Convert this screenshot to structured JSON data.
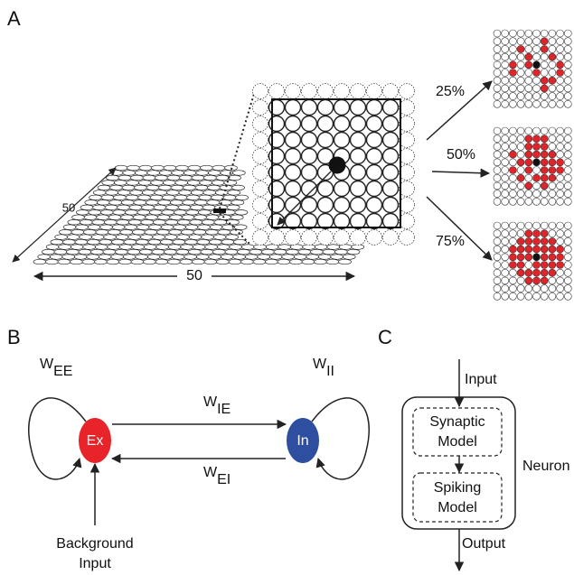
{
  "panel_a": {
    "label": "A",
    "width_label": "50",
    "depth_label": "50",
    "probabilities": [
      "25%",
      "50%",
      "75%"
    ]
  },
  "panel_b": {
    "label": "B",
    "w_ee": {
      "main": "W",
      "sub": "EE"
    },
    "w_ii": {
      "main": "W",
      "sub": "II"
    },
    "w_ie": {
      "main": "W",
      "sub": "IE"
    },
    "w_ei": {
      "main": "W",
      "sub": "EI"
    },
    "excitatory": "Ex",
    "inhibitory": "In",
    "background": [
      "Background",
      "Input"
    ]
  },
  "panel_c": {
    "label": "C",
    "input": "Input",
    "synaptic": [
      "Synaptic",
      "Model"
    ],
    "spiking": [
      "Spiking",
      "Model"
    ],
    "neuron": "Neuron",
    "output": "Output"
  }
}
